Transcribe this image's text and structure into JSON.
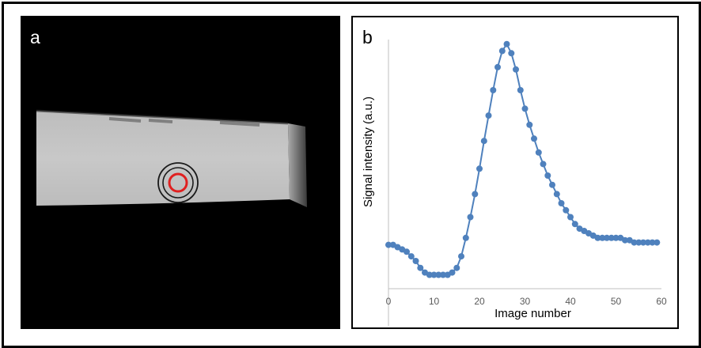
{
  "panel_a": {
    "label": "a"
  },
  "panel_b": {
    "label": "b"
  },
  "chart_data": {
    "type": "line",
    "xlabel": "Image number",
    "ylabel": "Signal intensity (a.u.)",
    "xlim": [
      0,
      60
    ],
    "xticks": [
      0,
      10,
      20,
      30,
      40,
      50,
      60
    ],
    "y_ticks_shown": false,
    "grid": false,
    "color": "#4f81bd",
    "series": [
      {
        "x": [
          0,
          1,
          2,
          3,
          4,
          5,
          6,
          7,
          8,
          9,
          10,
          11,
          12,
          13,
          14,
          15,
          16,
          17,
          18,
          19,
          20,
          21,
          22,
          23,
          24,
          25,
          26,
          27,
          28,
          29,
          30,
          31,
          32,
          33,
          34,
          35,
          36,
          37,
          38,
          39,
          40,
          41,
          42,
          43,
          44,
          45,
          46,
          47,
          48,
          49,
          50,
          51,
          52,
          53,
          54,
          55,
          56,
          57,
          58,
          59
        ],
        "values": [
          0.09,
          0.09,
          0.08,
          0.07,
          0.06,
          0.04,
          0.02,
          -0.01,
          -0.03,
          -0.04,
          -0.04,
          -0.04,
          -0.04,
          -0.04,
          -0.03,
          -0.01,
          0.04,
          0.12,
          0.21,
          0.31,
          0.42,
          0.54,
          0.65,
          0.76,
          0.86,
          0.93,
          0.96,
          0.92,
          0.85,
          0.76,
          0.68,
          0.61,
          0.55,
          0.49,
          0.44,
          0.39,
          0.35,
          0.31,
          0.27,
          0.24,
          0.21,
          0.18,
          0.16,
          0.15,
          0.14,
          0.13,
          0.12,
          0.12,
          0.12,
          0.12,
          0.12,
          0.12,
          0.11,
          0.11,
          0.1,
          0.1,
          0.1,
          0.1,
          0.1,
          0.1
        ]
      }
    ]
  }
}
